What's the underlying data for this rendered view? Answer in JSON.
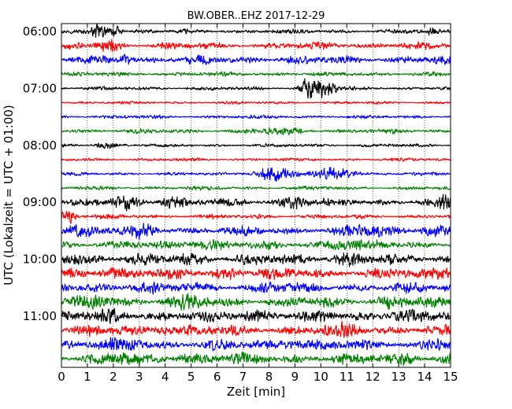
{
  "chart_data": {
    "type": "line",
    "title": "BW.OBER..EHZ 2017-12-29",
    "xlabel": "Zeit  [min]",
    "ylabel": "UTC (Lokalzeit = UTC + 01:00)",
    "xlim": [
      0,
      15
    ],
    "x_ticks": [
      "0",
      "1",
      "2",
      "3",
      "4",
      "5",
      "6",
      "7",
      "8",
      "9",
      "10",
      "11",
      "12",
      "13",
      "14",
      "15"
    ],
    "y_ticks": [
      {
        "row": 0,
        "label": "06:00"
      },
      {
        "row": 4,
        "label": "07:00"
      },
      {
        "row": 8,
        "label": "08:00"
      },
      {
        "row": 12,
        "label": "09:00"
      },
      {
        "row": 16,
        "label": "10:00"
      },
      {
        "row": 20,
        "label": "11:00"
      }
    ],
    "row_minutes": 15,
    "grid": true,
    "colors": [
      "#000000",
      "#ff0000",
      "#0000ff",
      "#008000"
    ],
    "traces": [
      {
        "start": "06:00",
        "amp": 0.3,
        "events": [
          {
            "t": 1.5,
            "a": 0.9,
            "w": 0.3
          },
          {
            "t": 2.1,
            "a": 0.7,
            "w": 0.2
          },
          {
            "t": 14.3,
            "a": 0.6,
            "w": 0.15
          }
        ]
      },
      {
        "start": "06:15",
        "amp": 0.45,
        "events": [
          {
            "t": 1.8,
            "a": 0.6,
            "w": 0.4
          }
        ]
      },
      {
        "start": "06:30",
        "amp": 0.55,
        "events": [
          {
            "t": 2.4,
            "a": 0.8,
            "w": 0.2
          }
        ]
      },
      {
        "start": "06:45",
        "amp": 0.3,
        "events": []
      },
      {
        "start": "07:00",
        "amp": 0.25,
        "events": [
          {
            "t": 9.6,
            "a": 1.6,
            "w": 0.35
          },
          {
            "t": 10.2,
            "a": 1.8,
            "w": 0.3
          }
        ]
      },
      {
        "start": "07:15",
        "amp": 0.2,
        "events": []
      },
      {
        "start": "07:30",
        "amp": 0.25,
        "events": []
      },
      {
        "start": "07:45",
        "amp": 0.3,
        "events": [
          {
            "t": 8.5,
            "a": 0.3,
            "w": 0.8
          }
        ]
      },
      {
        "start": "08:00",
        "amp": 0.22,
        "events": [
          {
            "t": 1.7,
            "a": 0.4,
            "w": 0.4
          }
        ]
      },
      {
        "start": "08:15",
        "amp": 0.22,
        "events": []
      },
      {
        "start": "08:30",
        "amp": 0.22,
        "events": [
          {
            "t": 8.2,
            "a": 0.9,
            "w": 0.7
          },
          {
            "t": 10.5,
            "a": 0.8,
            "w": 0.8
          }
        ]
      },
      {
        "start": "08:45",
        "amp": 0.25,
        "events": []
      },
      {
        "start": "09:00",
        "amp": 0.5,
        "events": [
          {
            "t": 2.5,
            "a": 0.6,
            "w": 0.5
          },
          {
            "t": 4.3,
            "a": 0.6,
            "w": 0.5
          },
          {
            "t": 9.0,
            "a": 0.7,
            "w": 0.5
          },
          {
            "t": 14.8,
            "a": 0.6,
            "w": 0.3
          }
        ]
      },
      {
        "start": "09:15",
        "amp": 0.3,
        "events": [
          {
            "t": 0.3,
            "a": 0.9,
            "w": 0.3
          }
        ]
      },
      {
        "start": "09:30",
        "amp": 0.6,
        "events": [
          {
            "t": 0.6,
            "a": 0.7,
            "w": 0.5
          },
          {
            "t": 3.2,
            "a": 0.8,
            "w": 0.4
          },
          {
            "t": 11.8,
            "a": 0.5,
            "w": 0.6
          },
          {
            "t": 14.3,
            "a": 0.5,
            "w": 0.5
          }
        ]
      },
      {
        "start": "09:45",
        "amp": 0.55,
        "events": [
          {
            "t": 5.5,
            "a": 0.4,
            "w": 0.8
          },
          {
            "t": 10.8,
            "a": 0.4,
            "w": 0.8
          }
        ]
      },
      {
        "start": "10:00",
        "amp": 0.7,
        "events": [
          {
            "t": 0.5,
            "a": 0.4,
            "w": 0.5
          },
          {
            "t": 5.0,
            "a": 0.4,
            "w": 0.5
          },
          {
            "t": 11.0,
            "a": 0.4,
            "w": 0.5
          }
        ]
      },
      {
        "start": "10:15",
        "amp": 0.7,
        "events": [
          {
            "t": 2.0,
            "a": 0.4,
            "w": 0.6
          },
          {
            "t": 6.5,
            "a": 0.4,
            "w": 0.6
          },
          {
            "t": 14.8,
            "a": 0.5,
            "w": 0.4
          }
        ]
      },
      {
        "start": "10:30",
        "amp": 0.65,
        "events": [
          {
            "t": 3.0,
            "a": 0.3,
            "w": 0.6
          },
          {
            "t": 8.0,
            "a": 0.3,
            "w": 0.6
          }
        ]
      },
      {
        "start": "10:45",
        "amp": 0.7,
        "events": [
          {
            "t": 1.5,
            "a": 0.4,
            "w": 0.6
          },
          {
            "t": 5.0,
            "a": 0.4,
            "w": 0.6
          },
          {
            "t": 12.8,
            "a": 0.4,
            "w": 0.5
          }
        ]
      },
      {
        "start": "11:00",
        "amp": 0.7,
        "events": [
          {
            "t": 2.0,
            "a": 0.4,
            "w": 0.6
          },
          {
            "t": 7.5,
            "a": 0.4,
            "w": 0.6
          },
          {
            "t": 13.0,
            "a": 0.4,
            "w": 0.6
          }
        ]
      },
      {
        "start": "11:15",
        "amp": 0.7,
        "events": [
          {
            "t": 4.0,
            "a": 0.4,
            "w": 0.6
          },
          {
            "t": 11.0,
            "a": 0.4,
            "w": 0.6
          }
        ]
      },
      {
        "start": "11:30",
        "amp": 0.7,
        "events": [
          {
            "t": 2.5,
            "a": 0.4,
            "w": 0.6
          },
          {
            "t": 9.0,
            "a": 0.4,
            "w": 0.6
          },
          {
            "t": 14.5,
            "a": 0.4,
            "w": 0.5
          }
        ]
      },
      {
        "start": "11:45",
        "amp": 0.75,
        "events": [
          {
            "t": 2.0,
            "a": 0.4,
            "w": 0.6
          },
          {
            "t": 5.0,
            "a": 0.4,
            "w": 0.6
          },
          {
            "t": 13.2,
            "a": 0.4,
            "w": 0.5
          }
        ]
      }
    ]
  }
}
